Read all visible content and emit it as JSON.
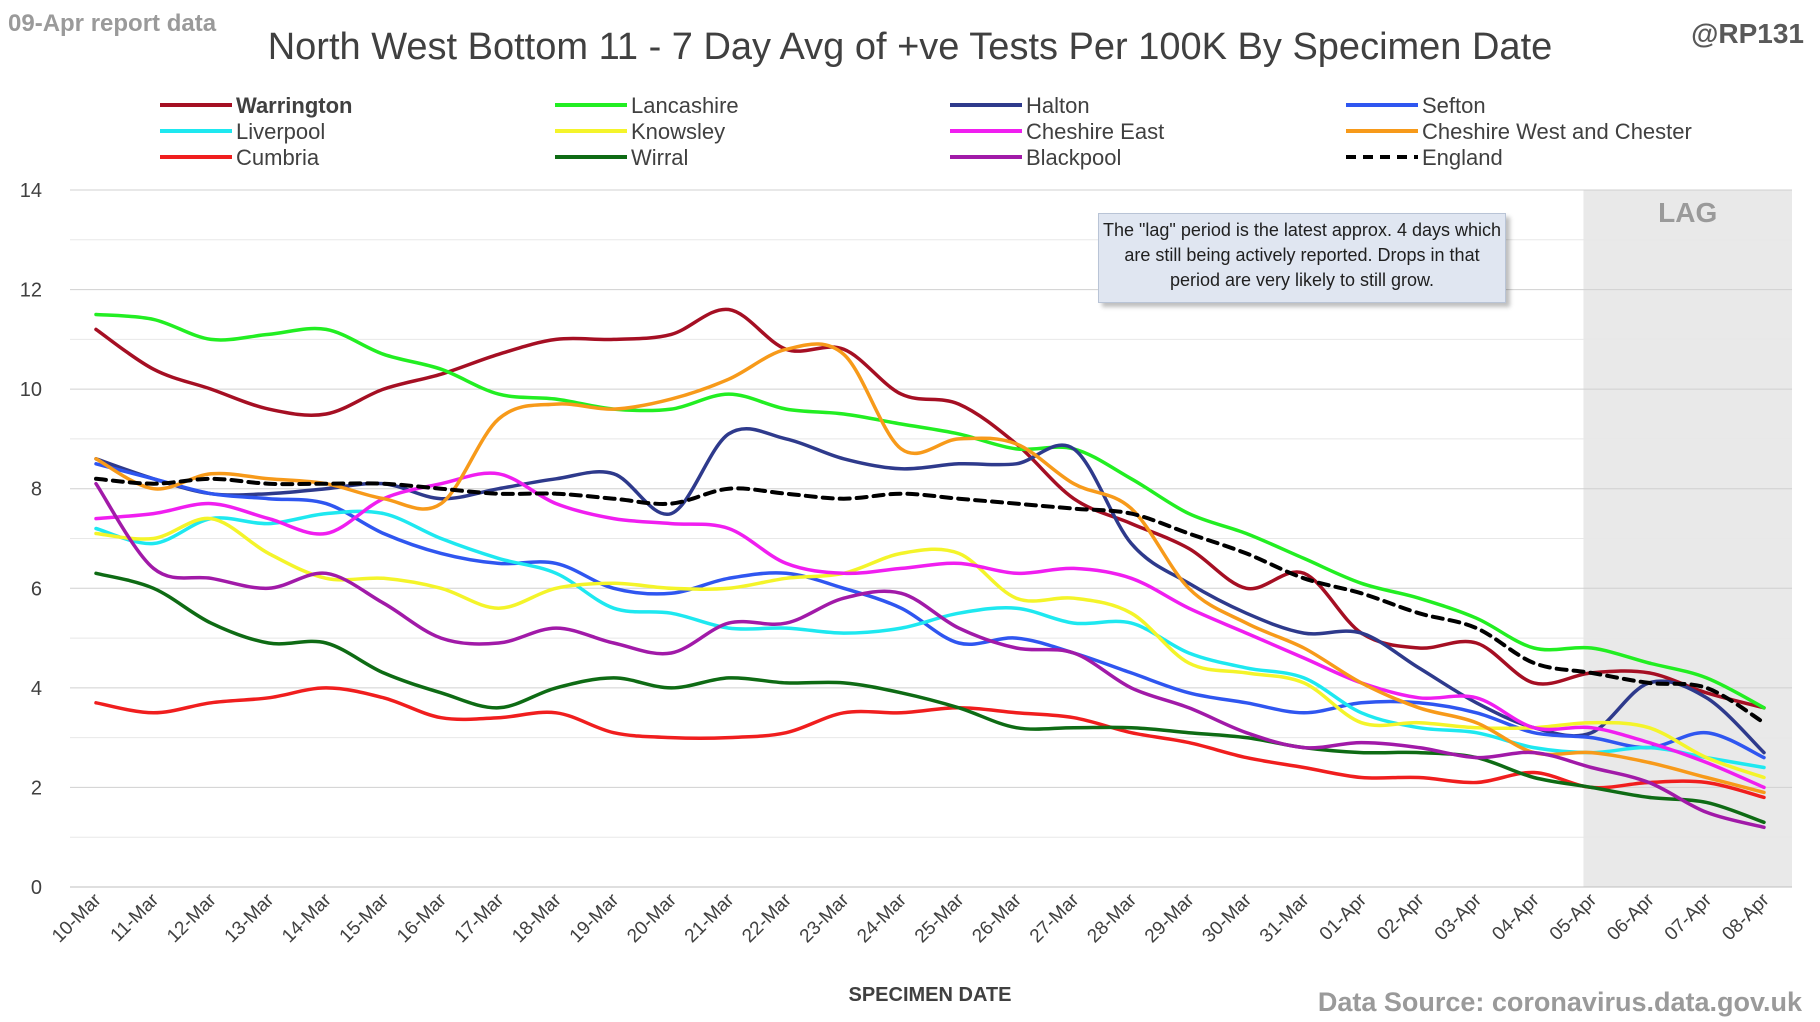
{
  "header": {
    "report_label": "09-Apr report data",
    "handle": "@RP131",
    "source": "Data Source: coronavirus.data.gov.uk"
  },
  "note": "The \"lag\" period is the latest approx. 4 days which are still being actively reported. Drops in that period are very likely to still grow.",
  "chart_data": {
    "type": "line",
    "title": "North West Bottom 11 - 7 Day Avg of +ve Tests Per 100K By Specimen Date",
    "xlabel": "SPECIMEN DATE",
    "ylabel": "",
    "ylim": [
      0,
      14
    ],
    "yticks": [
      0,
      2,
      4,
      6,
      8,
      10,
      12,
      14
    ],
    "grid": true,
    "legend_position": "top",
    "lag_label": "LAG",
    "lag_start": "05-Apr",
    "categories": [
      "10-Mar",
      "11-Mar",
      "12-Mar",
      "13-Mar",
      "14-Mar",
      "15-Mar",
      "16-Mar",
      "17-Mar",
      "18-Mar",
      "19-Mar",
      "20-Mar",
      "21-Mar",
      "22-Mar",
      "23-Mar",
      "24-Mar",
      "25-Mar",
      "26-Mar",
      "27-Mar",
      "28-Mar",
      "29-Mar",
      "30-Mar",
      "31-Mar",
      "01-Apr",
      "02-Apr",
      "03-Apr",
      "04-Apr",
      "05-Apr",
      "06-Apr",
      "07-Apr",
      "08-Apr"
    ],
    "series": [
      {
        "name": "Warrington",
        "color": "#a50f23",
        "bold": true,
        "values": [
          11.2,
          10.4,
          10.0,
          9.6,
          9.5,
          10.0,
          10.3,
          10.7,
          11.0,
          11.0,
          11.1,
          11.6,
          10.8,
          10.8,
          9.9,
          9.7,
          8.9,
          7.8,
          7.3,
          6.8,
          6.0,
          6.3,
          5.1,
          4.8,
          4.9,
          4.1,
          4.3,
          4.3,
          3.9,
          3.6
        ]
      },
      {
        "name": "Lancashire",
        "color": "#22ee22",
        "values": [
          11.5,
          11.4,
          11.0,
          11.1,
          11.2,
          10.7,
          10.4,
          9.9,
          9.8,
          9.6,
          9.6,
          9.9,
          9.6,
          9.5,
          9.3,
          9.1,
          8.8,
          8.8,
          8.2,
          7.5,
          7.1,
          6.6,
          6.1,
          5.8,
          5.4,
          4.8,
          4.8,
          4.5,
          4.2,
          3.6
        ]
      },
      {
        "name": "Halton",
        "color": "#2e3a8c",
        "values": [
          8.6,
          8.2,
          7.9,
          7.9,
          8.0,
          8.1,
          7.8,
          8.0,
          8.2,
          8.3,
          7.5,
          9.1,
          9.0,
          8.6,
          8.4,
          8.5,
          8.5,
          8.8,
          6.9,
          6.1,
          5.5,
          5.1,
          5.1,
          4.4,
          3.7,
          3.2,
          3.1,
          4.1,
          3.8,
          2.7
        ]
      },
      {
        "name": "Sefton",
        "color": "#2f56f0",
        "values": [
          8.5,
          8.2,
          7.9,
          7.8,
          7.7,
          7.1,
          6.7,
          6.5,
          6.5,
          6.0,
          5.9,
          6.2,
          6.3,
          6.0,
          5.6,
          4.9,
          5.0,
          4.7,
          4.3,
          3.9,
          3.7,
          3.5,
          3.7,
          3.7,
          3.5,
          3.1,
          3.0,
          2.8,
          3.1,
          2.6
        ]
      },
      {
        "name": "Liverpool",
        "color": "#1ee8f0",
        "values": [
          7.2,
          6.9,
          7.4,
          7.3,
          7.5,
          7.5,
          7.0,
          6.6,
          6.3,
          5.6,
          5.5,
          5.2,
          5.2,
          5.1,
          5.2,
          5.5,
          5.6,
          5.3,
          5.3,
          4.7,
          4.4,
          4.2,
          3.5,
          3.2,
          3.1,
          2.8,
          2.7,
          2.8,
          2.6,
          2.4
        ]
      },
      {
        "name": "Knowsley",
        "color": "#f4f42a",
        "values": [
          7.1,
          7.0,
          7.4,
          6.7,
          6.2,
          6.2,
          6.0,
          5.6,
          6.0,
          6.1,
          6.0,
          6.0,
          6.2,
          6.3,
          6.7,
          6.7,
          5.8,
          5.8,
          5.5,
          4.5,
          4.3,
          4.1,
          3.3,
          3.3,
          3.2,
          3.2,
          3.3,
          3.2,
          2.6,
          2.2
        ]
      },
      {
        "name": "Cheshire East",
        "color": "#f01ef0",
        "values": [
          7.4,
          7.5,
          7.7,
          7.4,
          7.1,
          7.8,
          8.1,
          8.3,
          7.7,
          7.4,
          7.3,
          7.2,
          6.5,
          6.3,
          6.4,
          6.5,
          6.3,
          6.4,
          6.2,
          5.6,
          5.1,
          4.6,
          4.1,
          3.8,
          3.8,
          3.2,
          3.2,
          2.9,
          2.5,
          2.0
        ]
      },
      {
        "name": "Cheshire West and Chester",
        "color": "#f79a1a",
        "values": [
          8.6,
          8.0,
          8.3,
          8.2,
          8.1,
          7.8,
          7.7,
          9.4,
          9.7,
          9.6,
          9.8,
          10.2,
          10.8,
          10.7,
          8.8,
          9.0,
          8.9,
          8.1,
          7.6,
          6.0,
          5.3,
          4.8,
          4.1,
          3.6,
          3.3,
          2.7,
          2.7,
          2.5,
          2.2,
          1.9
        ]
      },
      {
        "name": "Cumbria",
        "color": "#f01e1e",
        "values": [
          3.7,
          3.5,
          3.7,
          3.8,
          4.0,
          3.8,
          3.4,
          3.4,
          3.5,
          3.1,
          3.0,
          3.0,
          3.1,
          3.5,
          3.5,
          3.6,
          3.5,
          3.4,
          3.1,
          2.9,
          2.6,
          2.4,
          2.2,
          2.2,
          2.1,
          2.3,
          2.0,
          2.1,
          2.1,
          1.8
        ]
      },
      {
        "name": "Wirral",
        "color": "#0e6b14",
        "values": [
          6.3,
          6.0,
          5.3,
          4.9,
          4.9,
          4.3,
          3.9,
          3.6,
          4.0,
          4.2,
          4.0,
          4.2,
          4.1,
          4.1,
          3.9,
          3.6,
          3.2,
          3.2,
          3.2,
          3.1,
          3.0,
          2.8,
          2.7,
          2.7,
          2.6,
          2.2,
          2.0,
          1.8,
          1.7,
          1.3
        ]
      },
      {
        "name": "Blackpool",
        "color": "#a11aa8",
        "values": [
          8.1,
          6.4,
          6.2,
          6.0,
          6.3,
          5.7,
          5.0,
          4.9,
          5.2,
          4.9,
          4.7,
          5.3,
          5.3,
          5.8,
          5.9,
          5.2,
          4.8,
          4.7,
          4.0,
          3.6,
          3.1,
          2.8,
          2.9,
          2.8,
          2.6,
          2.7,
          2.4,
          2.1,
          1.5,
          1.2
        ]
      },
      {
        "name": "England",
        "color": "#000000",
        "dashed": true,
        "values": [
          8.2,
          8.1,
          8.2,
          8.1,
          8.1,
          8.1,
          8.0,
          7.9,
          7.9,
          7.8,
          7.7,
          8.0,
          7.9,
          7.8,
          7.9,
          7.8,
          7.7,
          7.6,
          7.5,
          7.1,
          6.7,
          6.2,
          5.9,
          5.5,
          5.2,
          4.5,
          4.3,
          4.1,
          4.0,
          3.3
        ]
      }
    ]
  }
}
